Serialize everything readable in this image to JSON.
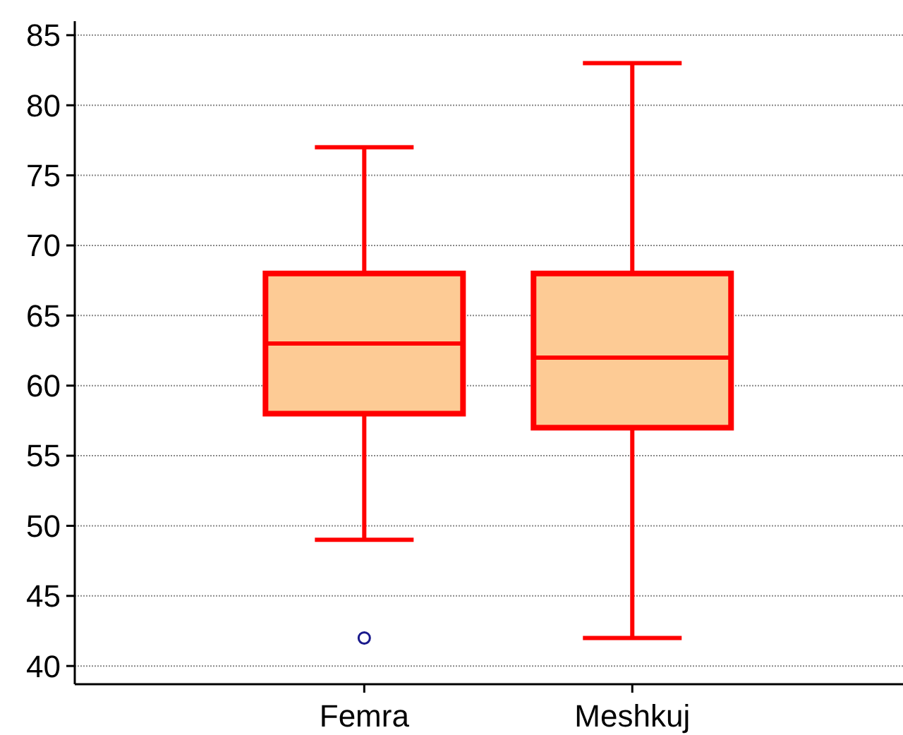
{
  "chart_data": {
    "type": "box",
    "categories": [
      "Femra",
      "Meshkuj"
    ],
    "boxes": [
      {
        "low": 49,
        "q1": 58,
        "median": 63,
        "q3": 68,
        "high": 77,
        "outliers": [
          42
        ]
      },
      {
        "low": 42,
        "q1": 57,
        "median": 62,
        "q3": 68,
        "high": 83
      }
    ],
    "color": "#ff0000",
    "ylim": [
      38.7,
      86
    ],
    "yticks": [
      40,
      45,
      50,
      55,
      60,
      65,
      70,
      75,
      80,
      85
    ],
    "grid": "y"
  }
}
